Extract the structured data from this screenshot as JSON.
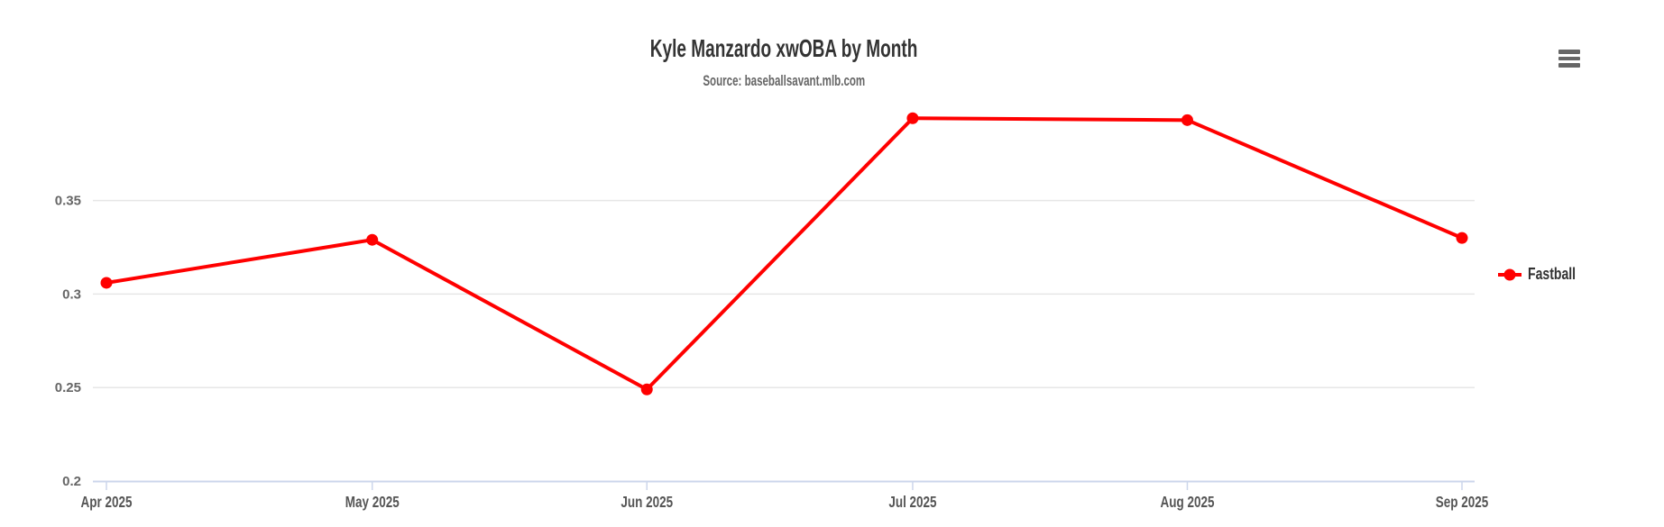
{
  "header": {
    "title": "Kyle Manzardo xwOBA by Month",
    "subtitle": "Source: baseballsavant.mlb.com"
  },
  "menu": {
    "icon": "hamburger-menu-icon"
  },
  "legend": {
    "position": "right",
    "items": [
      {
        "label": "Fastball",
        "color": "#ff0000"
      }
    ]
  },
  "colors": {
    "background": "#ffffff",
    "series": "#ff0000",
    "gridline": "#e6e6e6",
    "axis_line": "#ccd6eb",
    "y_label": "#666666",
    "x_label": "#555555",
    "title": "#333333",
    "subtitle": "#666666",
    "menu_icon": "#666666"
  },
  "chart_data": {
    "type": "line",
    "title": "Kyle Manzardo xwOBA by Month",
    "subtitle": "Source: baseballsavant.mlb.com",
    "x": [
      "Apr 2025",
      "May 2025",
      "Jun 2025",
      "Jul 2025",
      "Aug 2025",
      "Sep 2025"
    ],
    "x_days": [
      0,
      30,
      61,
      91,
      122,
      153
    ],
    "series": [
      {
        "name": "Fastball",
        "color": "#ff0000",
        "values": [
          0.306,
          0.329,
          0.249,
          0.394,
          0.393,
          0.33
        ]
      }
    ],
    "yticks": [
      0.2,
      0.25,
      0.3,
      0.35
    ],
    "ytick_labels": [
      "0.2",
      "0.25",
      "0.3",
      "0.35"
    ],
    "ylim": [
      0.2,
      0.41
    ],
    "xlabel": "",
    "ylabel": "",
    "grid": true,
    "marker": "circle",
    "legend_position": "right"
  }
}
